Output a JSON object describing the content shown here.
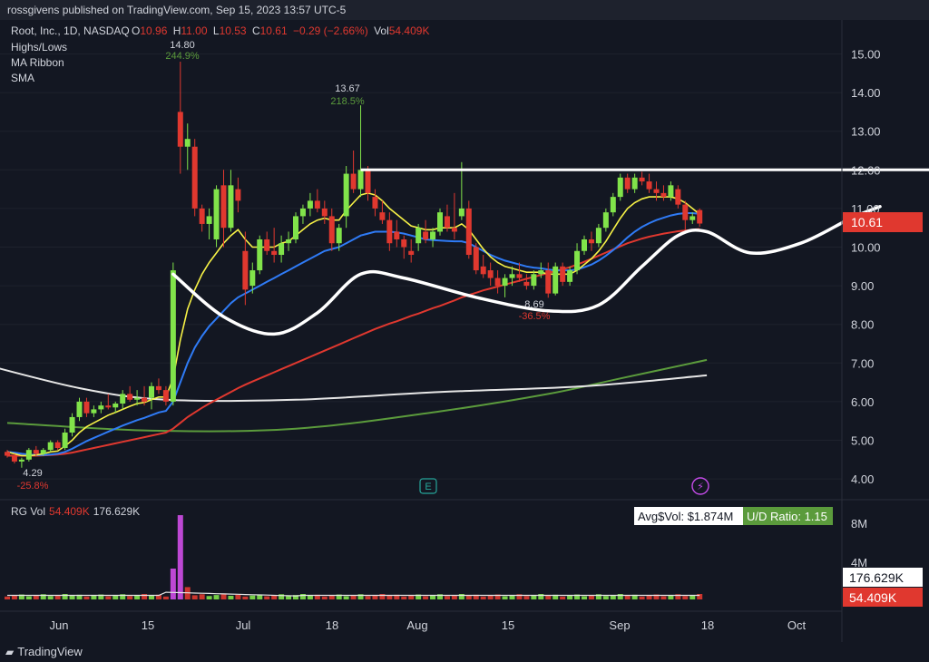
{
  "header": {
    "publisher_line": "rossgivens published on TradingView.com, Sep 15, 2023 13:57 UTC-5"
  },
  "legend": {
    "symbol": "Root, Inc., 1D, NASDAQ",
    "o_label": "O",
    "o_value": "10.96",
    "h_label": "H",
    "h_value": "11.00",
    "l_label": "L",
    "l_value": "10.53",
    "c_label": "C",
    "c_value": "10.61",
    "change": "−0.29 (−2.66%)",
    "vol_label": "Vol",
    "vol_value": "54.409K",
    "indicators": [
      "Highs/Lows",
      "MA Ribbon",
      "SMA"
    ]
  },
  "volume_legend": {
    "name": "RG Vol",
    "value1": "54.409K",
    "value2": "176.629K"
  },
  "volume_stats": {
    "avg_label": "Avg$Vol: $1.874M",
    "ud_label": "U/D Ratio: 1.15"
  },
  "annotations": {
    "high1_price": "14.80",
    "high1_pct": "244.9%",
    "high2_price": "13.67",
    "high2_pct": "218.5%",
    "low1_price": "4.29",
    "low1_pct": "-25.8%",
    "low2_price": "8.69",
    "low2_pct": "-36.5%"
  },
  "markers": {
    "earnings": "E",
    "dividend": "⚡"
  },
  "price_axis": {
    "labels": [
      "15.00",
      "14.00",
      "13.00",
      "12.00",
      "11.00",
      "10.00",
      "9.00",
      "8.00",
      "7.00",
      "6.00",
      "5.00",
      "4.00"
    ],
    "last_price": "10.61"
  },
  "volume_axis": {
    "labels": [
      "8M",
      "4M"
    ],
    "badge1": "176.629K",
    "badge2": "54.409K"
  },
  "time_axis": {
    "labels": [
      "Jun",
      "15",
      "Jul",
      "18",
      "Aug",
      "15",
      "Sep",
      "18",
      "Oct"
    ]
  },
  "footer": {
    "brand": "TradingView"
  },
  "colors": {
    "up": "#81e34a",
    "down": "#e0382f",
    "bg": "#131722",
    "axis_text": "#d1d4dc",
    "sma_green": "#5b9b3c",
    "ma_yellow": "#f7f246",
    "ma_blue": "#2f7bf6",
    "ma_red": "#e0382f",
    "volume_spike": "#d04ee8"
  },
  "chart_data": {
    "type": "candlestick",
    "ylim": [
      3.6,
      15.8
    ],
    "candles": [
      [
        4.7,
        4.75,
        4.55,
        4.6
      ],
      [
        4.6,
        4.65,
        4.4,
        4.45
      ],
      [
        4.45,
        4.55,
        4.29,
        4.5
      ],
      [
        4.5,
        4.8,
        4.45,
        4.75
      ],
      [
        4.75,
        4.85,
        4.6,
        4.65
      ],
      [
        4.65,
        4.8,
        4.6,
        4.75
      ],
      [
        4.75,
        5.0,
        4.7,
        4.95
      ],
      [
        4.95,
        5.0,
        4.75,
        4.8
      ],
      [
        4.8,
        5.3,
        4.75,
        5.2
      ],
      [
        5.2,
        5.7,
        5.1,
        5.6
      ],
      [
        5.6,
        6.1,
        5.5,
        6.0
      ],
      [
        6.0,
        6.1,
        5.6,
        5.7
      ],
      [
        5.7,
        5.9,
        5.6,
        5.8
      ],
      [
        5.8,
        6.0,
        5.7,
        5.9
      ],
      [
        5.9,
        6.2,
        5.8,
        5.85
      ],
      [
        5.85,
        6.0,
        5.7,
        5.95
      ],
      [
        5.95,
        6.3,
        5.8,
        6.2
      ],
      [
        6.2,
        6.4,
        6.0,
        6.05
      ],
      [
        6.05,
        6.3,
        5.9,
        6.1
      ],
      [
        6.1,
        6.4,
        5.9,
        6.0
      ],
      [
        6.1,
        6.5,
        5.8,
        6.4
      ],
      [
        6.4,
        6.6,
        6.2,
        6.3
      ],
      [
        6.3,
        6.4,
        5.9,
        6.0
      ],
      [
        6.0,
        9.6,
        5.9,
        9.4
      ],
      [
        13.5,
        14.8,
        11.9,
        12.6
      ],
      [
        12.6,
        13.2,
        12.0,
        12.8
      ],
      [
        12.6,
        12.8,
        10.8,
        11.0
      ],
      [
        11.0,
        11.1,
        10.4,
        10.6
      ],
      [
        10.6,
        11.0,
        10.2,
        10.8
      ],
      [
        10.2,
        11.6,
        10.0,
        11.5
      ],
      [
        11.6,
        12.0,
        10.0,
        10.5
      ],
      [
        10.5,
        12.0,
        10.4,
        11.6
      ],
      [
        11.5,
        11.8,
        10.9,
        11.2
      ],
      [
        9.9,
        10.4,
        8.5,
        8.9
      ],
      [
        9.0,
        9.6,
        8.8,
        9.4
      ],
      [
        9.4,
        10.3,
        9.3,
        10.2
      ],
      [
        10.2,
        10.4,
        9.8,
        9.9
      ],
      [
        9.9,
        10.5,
        9.6,
        9.8
      ],
      [
        9.8,
        10.3,
        9.6,
        10.1
      ],
      [
        10.1,
        10.4,
        9.9,
        10.2
      ],
      [
        10.2,
        10.9,
        10.1,
        10.8
      ],
      [
        10.8,
        11.1,
        10.6,
        11.0
      ],
      [
        11.0,
        11.4,
        10.8,
        11.2
      ],
      [
        11.2,
        11.5,
        10.9,
        11.0
      ],
      [
        11.0,
        11.2,
        10.6,
        10.8
      ],
      [
        10.8,
        11.0,
        9.9,
        10.1
      ],
      [
        10.1,
        10.6,
        9.9,
        10.5
      ],
      [
        10.8,
        12.1,
        10.5,
        11.9
      ],
      [
        11.9,
        12.5,
        11.4,
        11.5
      ],
      [
        11.5,
        13.67,
        11.3,
        12.0
      ],
      [
        12.0,
        12.1,
        11.2,
        11.4
      ],
      [
        11.3,
        11.5,
        10.8,
        11.0
      ],
      [
        10.9,
        11.2,
        10.6,
        10.7
      ],
      [
        10.7,
        10.9,
        9.9,
        10.1
      ],
      [
        10.4,
        10.7,
        10.0,
        10.2
      ],
      [
        10.2,
        10.3,
        9.7,
        10.0
      ],
      [
        9.9,
        10.2,
        9.6,
        9.8
      ],
      [
        10.1,
        10.6,
        9.9,
        10.5
      ],
      [
        10.4,
        10.7,
        10.1,
        10.2
      ],
      [
        10.2,
        10.5,
        10.0,
        10.4
      ],
      [
        10.4,
        11.0,
        10.3,
        10.9
      ],
      [
        10.8,
        11.1,
        10.4,
        10.5
      ],
      [
        10.5,
        11.4,
        10.2,
        10.4
      ],
      [
        10.8,
        12.2,
        10.7,
        11.0
      ],
      [
        11.0,
        11.2,
        9.7,
        9.8
      ],
      [
        10.0,
        10.1,
        9.3,
        9.4
      ],
      [
        9.5,
        9.8,
        9.2,
        9.3
      ],
      [
        9.4,
        9.6,
        9.0,
        9.2
      ],
      [
        9.2,
        9.4,
        8.8,
        9.0
      ],
      [
        9.0,
        9.3,
        8.7,
        9.2
      ],
      [
        9.2,
        9.5,
        9.0,
        9.3
      ],
      [
        9.3,
        9.6,
        9.1,
        9.2
      ],
      [
        9.1,
        9.3,
        8.9,
        9.0
      ],
      [
        9.0,
        9.4,
        8.9,
        9.3
      ],
      [
        9.3,
        9.6,
        9.2,
        9.4
      ],
      [
        9.4,
        9.6,
        8.69,
        8.8
      ],
      [
        8.8,
        9.6,
        8.75,
        9.5
      ],
      [
        9.5,
        9.6,
        9.0,
        9.1
      ],
      [
        9.1,
        9.5,
        9.0,
        9.4
      ],
      [
        9.4,
        10.1,
        9.3,
        9.9
      ],
      [
        9.9,
        10.3,
        9.8,
        10.2
      ],
      [
        10.2,
        10.4,
        9.9,
        10.1
      ],
      [
        10.1,
        10.6,
        10.0,
        10.5
      ],
      [
        10.5,
        11.0,
        10.4,
        10.9
      ],
      [
        10.9,
        11.4,
        10.8,
        11.3
      ],
      [
        11.3,
        11.9,
        11.2,
        11.8
      ],
      [
        11.8,
        11.9,
        11.4,
        11.5
      ],
      [
        11.5,
        11.9,
        11.4,
        11.8
      ],
      [
        11.8,
        11.95,
        11.6,
        11.7
      ],
      [
        11.7,
        11.9,
        11.4,
        11.5
      ],
      [
        11.5,
        11.7,
        11.2,
        11.4
      ],
      [
        11.4,
        11.6,
        11.2,
        11.3
      ],
      [
        11.3,
        11.7,
        11.2,
        11.6
      ],
      [
        11.5,
        11.6,
        11.0,
        11.1
      ],
      [
        11.1,
        11.2,
        10.4,
        10.7
      ],
      [
        10.7,
        10.9,
        10.6,
        10.8
      ],
      [
        10.96,
        11.0,
        10.53,
        10.61
      ]
    ],
    "x_start_index_sep": 84,
    "ma_yellow": [
      4.7,
      4.65,
      4.6,
      4.6,
      4.62,
      4.65,
      4.7,
      4.72,
      4.85,
      5.0,
      5.2,
      5.35,
      5.45,
      5.55,
      5.65,
      5.72,
      5.8,
      5.88,
      5.95,
      5.98,
      6.05,
      6.12,
      6.12,
      6.6,
      7.6,
      8.4,
      8.9,
      9.3,
      9.6,
      9.85,
      10.1,
      10.3,
      10.45,
      10.2,
      10.0,
      10.0,
      10.0,
      10.0,
      10.1,
      10.15,
      10.3,
      10.45,
      10.6,
      10.7,
      10.75,
      10.7,
      10.7,
      10.95,
      11.15,
      11.35,
      11.4,
      11.35,
      11.2,
      11.0,
      10.85,
      10.7,
      10.55,
      10.5,
      10.45,
      10.45,
      10.5,
      10.5,
      10.5,
      10.6,
      10.45,
      10.2,
      9.95,
      9.75,
      9.6,
      9.5,
      9.45,
      9.4,
      9.35,
      9.35,
      9.35,
      9.3,
      9.3,
      9.3,
      9.3,
      9.4,
      9.55,
      9.7,
      9.9,
      10.15,
      10.45,
      10.75,
      11.0,
      11.15,
      11.25,
      11.3,
      11.3,
      11.3,
      11.3,
      11.25,
      11.15,
      11.0,
      10.85
    ],
    "ma_blue": [
      4.7,
      4.68,
      4.65,
      4.63,
      4.62,
      4.62,
      4.63,
      4.65,
      4.7,
      4.78,
      4.88,
      4.98,
      5.06,
      5.14,
      5.22,
      5.3,
      5.38,
      5.45,
      5.52,
      5.58,
      5.65,
      5.72,
      5.76,
      6.0,
      6.5,
      7.0,
      7.4,
      7.7,
      7.95,
      8.15,
      8.35,
      8.55,
      8.7,
      8.8,
      8.9,
      9.0,
      9.1,
      9.2,
      9.3,
      9.4,
      9.5,
      9.6,
      9.7,
      9.8,
      9.9,
      9.95,
      10.0,
      10.1,
      10.2,
      10.3,
      10.35,
      10.4,
      10.4,
      10.4,
      10.38,
      10.35,
      10.3,
      10.25,
      10.2,
      10.18,
      10.17,
      10.16,
      10.15,
      10.15,
      10.1,
      10.0,
      9.9,
      9.8,
      9.72,
      9.65,
      9.6,
      9.55,
      9.5,
      9.47,
      9.45,
      9.42,
      9.4,
      9.4,
      9.4,
      9.42,
      9.48,
      9.55,
      9.65,
      9.78,
      9.92,
      10.08,
      10.25,
      10.4,
      10.52,
      10.62,
      10.7,
      10.76,
      10.82,
      10.86,
      10.88,
      10.88,
      10.86
    ],
    "ma_red": [
      4.6,
      4.6,
      4.6,
      4.6,
      4.6,
      4.61,
      4.62,
      4.63,
      4.65,
      4.68,
      4.72,
      4.76,
      4.8,
      4.84,
      4.88,
      4.92,
      4.96,
      5.0,
      5.04,
      5.08,
      5.12,
      5.16,
      5.2,
      5.3,
      5.45,
      5.6,
      5.72,
      5.84,
      5.95,
      6.05,
      6.15,
      6.25,
      6.35,
      6.44,
      6.52,
      6.6,
      6.68,
      6.76,
      6.84,
      6.92,
      7.0,
      7.08,
      7.16,
      7.24,
      7.32,
      7.4,
      7.48,
      7.56,
      7.64,
      7.72,
      7.8,
      7.88,
      7.95,
      8.02,
      8.08,
      8.15,
      8.22,
      8.28,
      8.35,
      8.42,
      8.48,
      8.55,
      8.62,
      8.7,
      8.76,
      8.82,
      8.88,
      8.93,
      8.98,
      9.03,
      9.08,
      9.13,
      9.18,
      9.23,
      9.28,
      9.33,
      9.38,
      9.43,
      9.48,
      9.55,
      9.62,
      9.7,
      9.78,
      9.86,
      9.94,
      10.02,
      10.1,
      10.16,
      10.22,
      10.27,
      10.31,
      10.35,
      10.38,
      10.41,
      10.43,
      10.45,
      10.47
    ],
    "sma_green": [
      [
        0,
        5.45
      ],
      [
        20,
        5.25
      ],
      [
        40,
        5.3
      ],
      [
        60,
        5.75
      ],
      [
        75,
        6.2
      ],
      [
        85,
        6.6
      ],
      [
        97,
        7.08
      ]
    ],
    "sma_white": [
      [
        -5,
        7.05
      ],
      [
        10,
        6.35
      ],
      [
        22,
        6.05
      ],
      [
        40,
        6.05
      ],
      [
        60,
        6.25
      ],
      [
        80,
        6.4
      ],
      [
        97,
        6.68
      ]
    ],
    "trendline_white": [
      [
        49,
        12.0
      ],
      [
        135,
        12.0
      ]
    ],
    "projection_curve": [
      [
        23,
        9.3
      ],
      [
        30,
        8.2
      ],
      [
        37,
        7.75
      ],
      [
        43,
        8.3
      ],
      [
        49,
        9.3
      ],
      [
        55,
        9.2
      ],
      [
        65,
        8.7
      ],
      [
        75,
        8.35
      ],
      [
        82,
        8.5
      ],
      [
        88,
        9.5
      ],
      [
        93,
        10.3
      ],
      [
        97,
        10.4
      ],
      [
        103,
        9.85
      ],
      [
        110,
        10.1
      ],
      [
        117,
        10.75
      ],
      [
        121,
        11.05
      ]
    ],
    "volume": {
      "max_axis": 9000000,
      "spike_index": 24,
      "spike_value": 8200000,
      "second_index": 23,
      "second_value": 3000000,
      "pre_spike_index": 25,
      "pre_spike_value": 1200000
    },
    "x_labels": [
      "Jun",
      "15",
      "Jul",
      "18",
      "Aug",
      "15",
      "Sep",
      "18",
      "Oct"
    ]
  }
}
